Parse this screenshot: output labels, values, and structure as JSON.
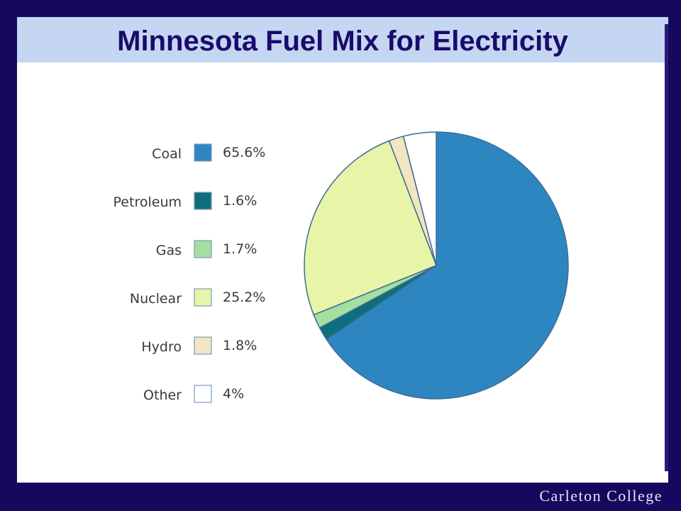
{
  "title": "Minnesota Fuel Mix for Electricity",
  "footer": "Carleton College",
  "colors": {
    "background": "#16085e",
    "title_band": "#c5d6f2",
    "title_text": "#1a0b6b"
  },
  "chart_data": {
    "type": "pie",
    "title": "Minnesota Fuel Mix for Electricity",
    "legend_position": "left",
    "slices": [
      {
        "label": "Coal",
        "value": 65.6,
        "value_label": "65.6%",
        "color": "#2e86c0"
      },
      {
        "label": "Petroleum",
        "value": 1.6,
        "value_label": "1.6%",
        "color": "#0e6e7e"
      },
      {
        "label": "Gas",
        "value": 1.7,
        "value_label": "1.7%",
        "color": "#a5dfa0"
      },
      {
        "label": "Nuclear",
        "value": 25.2,
        "value_label": "25.2%",
        "color": "#e8f5a8"
      },
      {
        "label": "Hydro",
        "value": 1.8,
        "value_label": "1.8%",
        "color": "#f1e6c0"
      },
      {
        "label": "Other",
        "value": 4,
        "value_label": "4%",
        "color": "#ffffff"
      }
    ]
  }
}
